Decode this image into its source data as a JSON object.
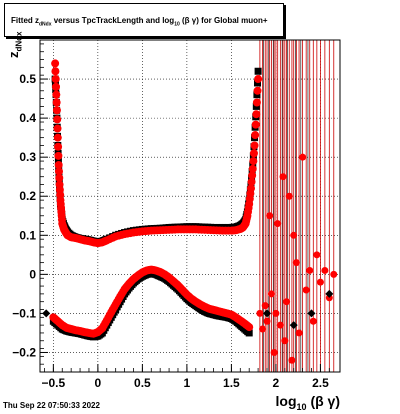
{
  "title": {
    "prefix": "Fitted  z",
    "sub1": "dNdx",
    "middle": "  versus TpcTrackLength and log",
    "sub2": "10",
    "suffix": " (β  γ) for Global muon+"
  },
  "datestamp": "Thu Sep 22 07:50:33 2022",
  "chart_data": {
    "type": "scatter",
    "xlabel_main": "log",
    "xlabel_sub": "10",
    "xlabel_tail": " (β γ)",
    "ylabel_main": "z",
    "ylabel_sub": "dNdx",
    "xlim": [
      -0.65,
      2.72
    ],
    "ylim": [
      -0.25,
      0.6
    ],
    "xticks": [
      -0.5,
      0,
      0.5,
      1,
      1.5,
      2,
      2.5
    ],
    "xtick_labels": [
      "−0.5",
      "0",
      "0.5",
      "1",
      "1.5",
      "2",
      "2.5"
    ],
    "yticks": [
      -0.2,
      -0.1,
      0,
      0.1,
      0.2,
      0.3,
      0.4,
      0.5
    ],
    "ytick_labels": [
      "−0.2",
      "−0.1",
      "0",
      "0.1",
      "0.2",
      "0.3",
      "0.4",
      "0.5"
    ],
    "grid": true,
    "series": [
      {
        "color": "#000000",
        "marker": "square",
        "upper_band": {
          "x": [
            -0.48,
            -0.47,
            -0.46,
            -0.45,
            -0.44,
            -0.43,
            -0.42,
            -0.41,
            -0.4,
            -0.38,
            -0.36,
            -0.34,
            -0.3,
            -0.25,
            -0.2,
            -0.15,
            -0.1,
            -0.05,
            0.0,
            0.05,
            0.1,
            0.2,
            0.3,
            0.4,
            0.5,
            0.6,
            0.7,
            0.8,
            0.9,
            1.0,
            1.1,
            1.2,
            1.3,
            1.4,
            1.5,
            1.55,
            1.6,
            1.63,
            1.66,
            1.68,
            1.7,
            1.72,
            1.74,
            1.76,
            1.78,
            1.8
          ],
          "y": [
            0.5,
            0.46,
            0.4,
            0.33,
            0.27,
            0.22,
            0.18,
            0.16,
            0.14,
            0.125,
            0.115,
            0.108,
            0.1,
            0.095,
            0.092,
            0.09,
            0.088,
            0.085,
            0.083,
            0.085,
            0.09,
            0.1,
            0.107,
            0.112,
            0.115,
            0.117,
            0.118,
            0.12,
            0.121,
            0.122,
            0.122,
            0.121,
            0.12,
            0.12,
            0.12,
            0.121,
            0.125,
            0.13,
            0.14,
            0.16,
            0.19,
            0.23,
            0.28,
            0.35,
            0.43,
            0.52
          ]
        },
        "lower_band": {
          "x": [
            -0.5,
            -0.45,
            -0.4,
            -0.35,
            -0.3,
            -0.25,
            -0.2,
            -0.15,
            -0.1,
            -0.05,
            0.0,
            0.05,
            0.1,
            0.15,
            0.2,
            0.25,
            0.3,
            0.35,
            0.4,
            0.45,
            0.5,
            0.55,
            0.6,
            0.65,
            0.7,
            0.75,
            0.8,
            0.85,
            0.9,
            0.95,
            1.0,
            1.05,
            1.1,
            1.15,
            1.2,
            1.25,
            1.3,
            1.35,
            1.4,
            1.45,
            1.5,
            1.55,
            1.6,
            1.65,
            1.7
          ],
          "y": [
            -0.12,
            -0.13,
            -0.14,
            -0.145,
            -0.148,
            -0.15,
            -0.152,
            -0.155,
            -0.158,
            -0.16,
            -0.158,
            -0.15,
            -0.13,
            -0.11,
            -0.09,
            -0.07,
            -0.05,
            -0.035,
            -0.022,
            -0.012,
            -0.005,
            0.0,
            0.002,
            0.0,
            -0.005,
            -0.01,
            -0.018,
            -0.028,
            -0.038,
            -0.05,
            -0.062,
            -0.072,
            -0.08,
            -0.088,
            -0.095,
            -0.1,
            -0.103,
            -0.106,
            -0.108,
            -0.11,
            -0.113,
            -0.12,
            -0.13,
            -0.14,
            -0.15
          ]
        }
      },
      {
        "color": "#ff0000",
        "marker": "circle",
        "upper_band": {
          "x": [
            -0.48,
            -0.47,
            -0.46,
            -0.45,
            -0.44,
            -0.43,
            -0.42,
            -0.41,
            -0.4,
            -0.38,
            -0.36,
            -0.34,
            -0.3,
            -0.25,
            -0.2,
            -0.15,
            -0.1,
            -0.05,
            0.0,
            0.05,
            0.1,
            0.2,
            0.3,
            0.4,
            0.5,
            0.6,
            0.7,
            0.8,
            0.9,
            1.0,
            1.1,
            1.2,
            1.3,
            1.4,
            1.5,
            1.55,
            1.6,
            1.63,
            1.66,
            1.68,
            1.7,
            1.72,
            1.74,
            1.76,
            1.78,
            1.8
          ],
          "y": [
            0.54,
            0.48,
            0.42,
            0.35,
            0.28,
            0.23,
            0.19,
            0.16,
            0.13,
            0.115,
            0.107,
            0.1,
            0.095,
            0.093,
            0.09,
            0.087,
            0.085,
            0.082,
            0.08,
            0.082,
            0.087,
            0.097,
            0.103,
            0.107,
            0.11,
            0.112,
            0.113,
            0.114,
            0.115,
            0.115,
            0.115,
            0.114,
            0.113,
            0.112,
            0.112,
            0.113,
            0.116,
            0.12,
            0.13,
            0.15,
            0.18,
            0.22,
            0.27,
            0.33,
            0.41,
            0.5
          ]
        },
        "lower_band": {
          "x": [
            -0.5,
            -0.45,
            -0.4,
            -0.35,
            -0.3,
            -0.25,
            -0.2,
            -0.15,
            -0.1,
            -0.05,
            0.0,
            0.05,
            0.1,
            0.15,
            0.2,
            0.25,
            0.3,
            0.35,
            0.4,
            0.45,
            0.5,
            0.55,
            0.6,
            0.65,
            0.7,
            0.75,
            0.8,
            0.85,
            0.9,
            0.95,
            1.0,
            1.05,
            1.1,
            1.15,
            1.2,
            1.25,
            1.3,
            1.35,
            1.4,
            1.45,
            1.5,
            1.55,
            1.6,
            1.65,
            1.7
          ],
          "y": [
            -0.11,
            -0.12,
            -0.13,
            -0.137,
            -0.14,
            -0.143,
            -0.145,
            -0.148,
            -0.15,
            -0.152,
            -0.148,
            -0.138,
            -0.118,
            -0.097,
            -0.077,
            -0.057,
            -0.038,
            -0.024,
            -0.012,
            -0.003,
            0.005,
            0.01,
            0.012,
            0.01,
            0.006,
            0.0,
            -0.008,
            -0.018,
            -0.028,
            -0.04,
            -0.052,
            -0.062,
            -0.07,
            -0.077,
            -0.083,
            -0.088,
            -0.091,
            -0.094,
            -0.097,
            -0.1,
            -0.103,
            -0.11,
            -0.118,
            -0.126,
            -0.135
          ]
        },
        "scatter_high_x": {
          "x": [
            1.82,
            1.85,
            1.88,
            1.9,
            1.93,
            1.95,
            1.98,
            2.0,
            2.02,
            2.05,
            2.08,
            2.1,
            2.12,
            2.15,
            2.18,
            2.2,
            2.23,
            2.26,
            2.3,
            2.34,
            2.38,
            2.42,
            2.46,
            2.5,
            2.55,
            2.6,
            2.65
          ],
          "y": [
            -0.1,
            -0.14,
            -0.08,
            -0.12,
            0.15,
            -0.05,
            -0.2,
            -0.1,
            0.13,
            -0.13,
            0.25,
            -0.17,
            -0.07,
            0.2,
            -0.22,
            0.1,
            0.03,
            -0.15,
            0.3,
            -0.04,
            0.01,
            -0.12,
            0.05,
            -0.02,
            0.01,
            -0.06,
            0.0
          ]
        }
      }
    ]
  }
}
